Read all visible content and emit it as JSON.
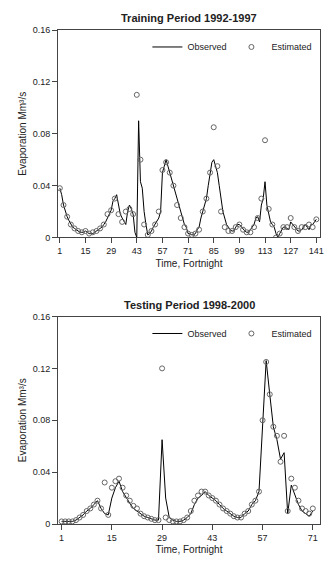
{
  "chart_data": [
    {
      "type": "line",
      "title": "Training Period 1992-1997",
      "xlabel": "Time, Fortnight",
      "ylabel": "Evaporation Mm³/s",
      "xlim": [
        0,
        143
      ],
      "xticks": [
        1,
        15,
        29,
        43,
        57,
        71,
        85,
        99,
        113,
        127,
        141
      ],
      "ylim": [
        0,
        0.16
      ],
      "yticks": [
        0,
        0.04,
        0.08,
        0.12,
        0.16
      ],
      "grid": false,
      "legend": "upper right",
      "series": [
        {
          "name": "Observed",
          "type": "line",
          "line_style": "solid",
          "color": "#000000",
          "x": [
            1,
            2,
            3,
            4,
            5,
            6,
            7,
            8,
            9,
            10,
            11,
            12,
            13,
            14,
            15,
            16,
            17,
            18,
            19,
            20,
            21,
            22,
            23,
            24,
            25,
            26,
            27,
            28,
            29,
            30,
            31,
            32,
            33,
            34,
            35,
            36,
            37,
            38,
            39,
            40,
            41,
            42,
            43,
            44,
            45,
            46,
            47,
            48,
            49,
            50,
            51,
            52,
            53,
            54,
            55,
            56,
            57,
            58,
            59,
            60,
            61,
            62,
            63,
            64,
            65,
            66,
            67,
            68,
            69,
            70,
            71,
            72,
            73,
            74,
            75,
            76,
            77,
            78,
            79,
            80,
            81,
            82,
            83,
            84,
            85,
            86,
            87,
            88,
            89,
            90,
            91,
            92,
            93,
            94,
            95,
            96,
            97,
            98,
            99,
            100,
            101,
            102,
            103,
            104,
            105,
            106,
            107,
            108,
            109,
            110,
            111,
            112,
            113,
            114,
            115,
            116,
            117,
            118,
            119,
            120,
            121,
            122,
            123,
            124,
            125,
            126,
            127,
            128,
            129,
            130,
            131,
            132,
            133,
            134,
            135,
            136,
            137,
            138,
            139,
            140,
            141
          ],
          "values": [
            0.038,
            0.033,
            0.025,
            0.02,
            0.016,
            0.013,
            0.01,
            0.008,
            0.007,
            0.006,
            0.005,
            0.004,
            0.004,
            0.004,
            0.005,
            0.004,
            0.003,
            0.003,
            0.003,
            0.004,
            0.005,
            0.006,
            0.007,
            0.008,
            0.01,
            0.012,
            0.015,
            0.018,
            0.021,
            0.028,
            0.03,
            0.033,
            0.025,
            0.018,
            0.015,
            0.012,
            0.01,
            0.02,
            0.025,
            0.022,
            0.018,
            0.004,
            0.0,
            0.09,
            0.043,
            0.038,
            0.02,
            0.01,
            0.002,
            0.003,
            0.005,
            0.008,
            0.01,
            0.013,
            0.015,
            0.02,
            0.05,
            0.055,
            0.06,
            0.055,
            0.05,
            0.045,
            0.04,
            0.035,
            0.03,
            0.025,
            0.02,
            0.015,
            0.01,
            0.008,
            0.003,
            0.003,
            0.002,
            0.002,
            0.003,
            0.006,
            0.008,
            0.015,
            0.02,
            0.025,
            0.03,
            0.04,
            0.05,
            0.058,
            0.06,
            0.055,
            0.05,
            0.04,
            0.03,
            0.02,
            0.015,
            0.01,
            0.008,
            0.006,
            0.005,
            0.005,
            0.008,
            0.01,
            0.01,
            0.008,
            0.006,
            0.005,
            0.004,
            0.004,
            0.006,
            0.008,
            0.01,
            0.015,
            0.016,
            0.012,
            0.025,
            0.03,
            0.043,
            0.025,
            0.018,
            0.012,
            0.01,
            0.008,
            0.003,
            0.0,
            0.003,
            0.005,
            0.008,
            0.008,
            0.007,
            0.006,
            0.012,
            0.01,
            0.008,
            0.006,
            0.005,
            0.005,
            0.006,
            0.008,
            0.01,
            0.008,
            0.006,
            0.01,
            0.01,
            0.012,
            0.014
          ]
        },
        {
          "name": "Estimated",
          "type": "scatter",
          "marker": "circle-open",
          "color": "#666666",
          "x": [
            1,
            3,
            5,
            7,
            9,
            11,
            13,
            15,
            17,
            19,
            21,
            23,
            25,
            27,
            29,
            31,
            33,
            35,
            37,
            39,
            41,
            43,
            45,
            47,
            49,
            51,
            53,
            55,
            57,
            59,
            61,
            63,
            65,
            67,
            69,
            71,
            73,
            75,
            77,
            79,
            81,
            83,
            85,
            87,
            89,
            91,
            93,
            95,
            97,
            99,
            101,
            103,
            105,
            107,
            109,
            111,
            113,
            115,
            117,
            119,
            121,
            123,
            125,
            127,
            129,
            131,
            133,
            135,
            137,
            139,
            141
          ],
          "values": [
            0.038,
            0.025,
            0.016,
            0.01,
            0.007,
            0.005,
            0.004,
            0.005,
            0.003,
            0.004,
            0.005,
            0.007,
            0.01,
            0.018,
            0.021,
            0.03,
            0.018,
            0.012,
            0.02,
            0.022,
            0.018,
            0.11,
            0.06,
            0.01,
            0.002,
            0.005,
            0.01,
            0.02,
            0.052,
            0.058,
            0.05,
            0.04,
            0.025,
            0.015,
            0.008,
            0.003,
            0.002,
            0.003,
            0.006,
            0.02,
            0.03,
            0.05,
            0.085,
            0.055,
            0.02,
            0.008,
            0.005,
            0.005,
            0.008,
            0.01,
            0.006,
            0.004,
            0.004,
            0.008,
            0.015,
            0.03,
            0.075,
            0.022,
            0.01,
            0.0,
            0.003,
            0.008,
            0.008,
            0.015,
            0.008,
            0.005,
            0.008,
            0.008,
            0.01,
            0.008,
            0.014
          ]
        }
      ]
    },
    {
      "type": "line",
      "title": "Testing Period 1998-2000",
      "xlabel": "Time, Fortnight",
      "ylabel": "Evaporation Mm³/s",
      "xlim": [
        0,
        73
      ],
      "xticks": [
        1,
        15,
        29,
        43,
        57,
        71
      ],
      "ylim": [
        0,
        0.16
      ],
      "yticks": [
        0,
        0.04,
        0.08,
        0.12,
        0.16
      ],
      "grid": false,
      "legend": "upper right",
      "series": [
        {
          "name": "Observed",
          "type": "line",
          "line_style": "solid",
          "color": "#000000",
          "x": [
            1,
            2,
            3,
            4,
            5,
            6,
            7,
            8,
            9,
            10,
            11,
            12,
            13,
            14,
            15,
            16,
            17,
            18,
            19,
            20,
            21,
            22,
            23,
            24,
            25,
            26,
            27,
            28,
            29,
            30,
            31,
            32,
            33,
            34,
            35,
            36,
            37,
            38,
            39,
            40,
            41,
            42,
            43,
            44,
            45,
            46,
            47,
            48,
            49,
            50,
            51,
            52,
            53,
            54,
            55,
            56,
            57,
            58,
            59,
            60,
            61,
            62,
            63,
            64,
            65,
            66,
            67,
            68,
            69,
            70,
            71
          ],
          "values": [
            0.002,
            0.002,
            0.002,
            0.002,
            0.003,
            0.005,
            0.007,
            0.01,
            0.012,
            0.015,
            0.018,
            0.012,
            0.008,
            0.007,
            0.02,
            0.028,
            0.033,
            0.025,
            0.02,
            0.016,
            0.012,
            0.01,
            0.008,
            0.006,
            0.005,
            0.004,
            0.003,
            0.003,
            0.065,
            0.02,
            0.005,
            0.003,
            0.002,
            0.002,
            0.003,
            0.005,
            0.008,
            0.015,
            0.02,
            0.022,
            0.025,
            0.022,
            0.02,
            0.018,
            0.015,
            0.012,
            0.01,
            0.008,
            0.006,
            0.005,
            0.005,
            0.008,
            0.01,
            0.015,
            0.018,
            0.025,
            0.08,
            0.126,
            0.1,
            0.075,
            0.065,
            0.05,
            0.055,
            0.008,
            0.03,
            0.022,
            0.015,
            0.01,
            0.008,
            0.006,
            0.01
          ]
        },
        {
          "name": "Estimated",
          "type": "scatter",
          "marker": "circle-open",
          "color": "#666666",
          "x": [
            1,
            2,
            3,
            4,
            5,
            6,
            7,
            8,
            9,
            10,
            11,
            12,
            13,
            14,
            15,
            16,
            17,
            18,
            19,
            20,
            21,
            22,
            23,
            24,
            25,
            26,
            27,
            28,
            29,
            30,
            31,
            32,
            33,
            34,
            35,
            36,
            37,
            38,
            39,
            40,
            41,
            42,
            43,
            44,
            45,
            46,
            47,
            48,
            49,
            50,
            51,
            52,
            53,
            54,
            55,
            56,
            57,
            58,
            59,
            60,
            61,
            62,
            63,
            64,
            65,
            66,
            67,
            68,
            69,
            70,
            71
          ],
          "values": [
            0.002,
            0.002,
            0.002,
            0.002,
            0.003,
            0.005,
            0.007,
            0.01,
            0.012,
            0.015,
            0.018,
            0.012,
            0.032,
            0.007,
            0.028,
            0.033,
            0.035,
            0.028,
            0.022,
            0.018,
            0.014,
            0.012,
            0.008,
            0.006,
            0.005,
            0.004,
            0.003,
            0.003,
            0.12,
            0.005,
            0.003,
            0.002,
            0.002,
            0.002,
            0.003,
            0.005,
            0.01,
            0.018,
            0.022,
            0.025,
            0.025,
            0.022,
            0.02,
            0.018,
            0.015,
            0.012,
            0.01,
            0.008,
            0.006,
            0.005,
            0.005,
            0.008,
            0.01,
            0.015,
            0.018,
            0.025,
            0.08,
            0.125,
            0.1,
            0.075,
            0.068,
            0.048,
            0.068,
            0.01,
            0.035,
            0.028,
            0.018,
            0.012,
            0.01,
            0.008,
            0.012
          ]
        }
      ]
    }
  ]
}
